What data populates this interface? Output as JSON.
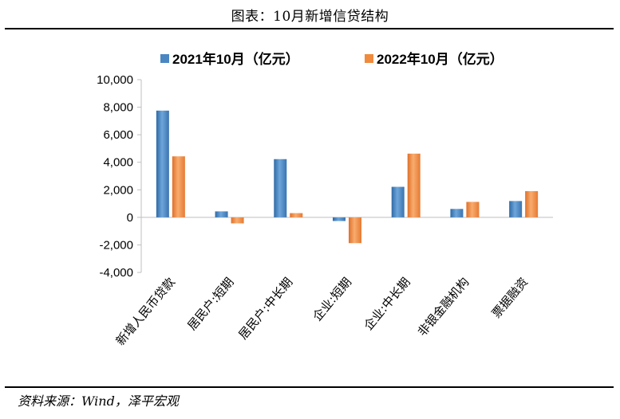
{
  "title": "图表：10月新增信贷结构",
  "source": "资料来源：Wind，泽平宏观",
  "colors": {
    "series1": "#4a86c2",
    "series2": "#f08a3c"
  },
  "chart_data": {
    "type": "bar",
    "categories": [
      "新增人民币贷款",
      "居民户:短期",
      "居民户:中长期",
      "企业:短期",
      "企业:中长期",
      "非银金融机构",
      "票据融资"
    ],
    "series": [
      {
        "name": "2021年10月（亿元）",
        "values": [
          7752,
          433,
          4228,
          -265,
          2217,
          612,
          1185
        ]
      },
      {
        "name": "2022年10月（亿元）",
        "values": [
          4431,
          -438,
          307,
          -1873,
          4628,
          1123,
          1906
        ]
      }
    ],
    "ylim": [
      -4000,
      10000
    ],
    "yticks": [
      10000,
      8000,
      6000,
      4000,
      2000,
      0,
      -2000,
      -4000
    ],
    "ytick_labels": [
      "10,000",
      "8,000",
      "6,000",
      "4,000",
      "2,000",
      "0",
      "-2,000",
      "-4,000"
    ],
    "legend": "top",
    "grid": false
  }
}
